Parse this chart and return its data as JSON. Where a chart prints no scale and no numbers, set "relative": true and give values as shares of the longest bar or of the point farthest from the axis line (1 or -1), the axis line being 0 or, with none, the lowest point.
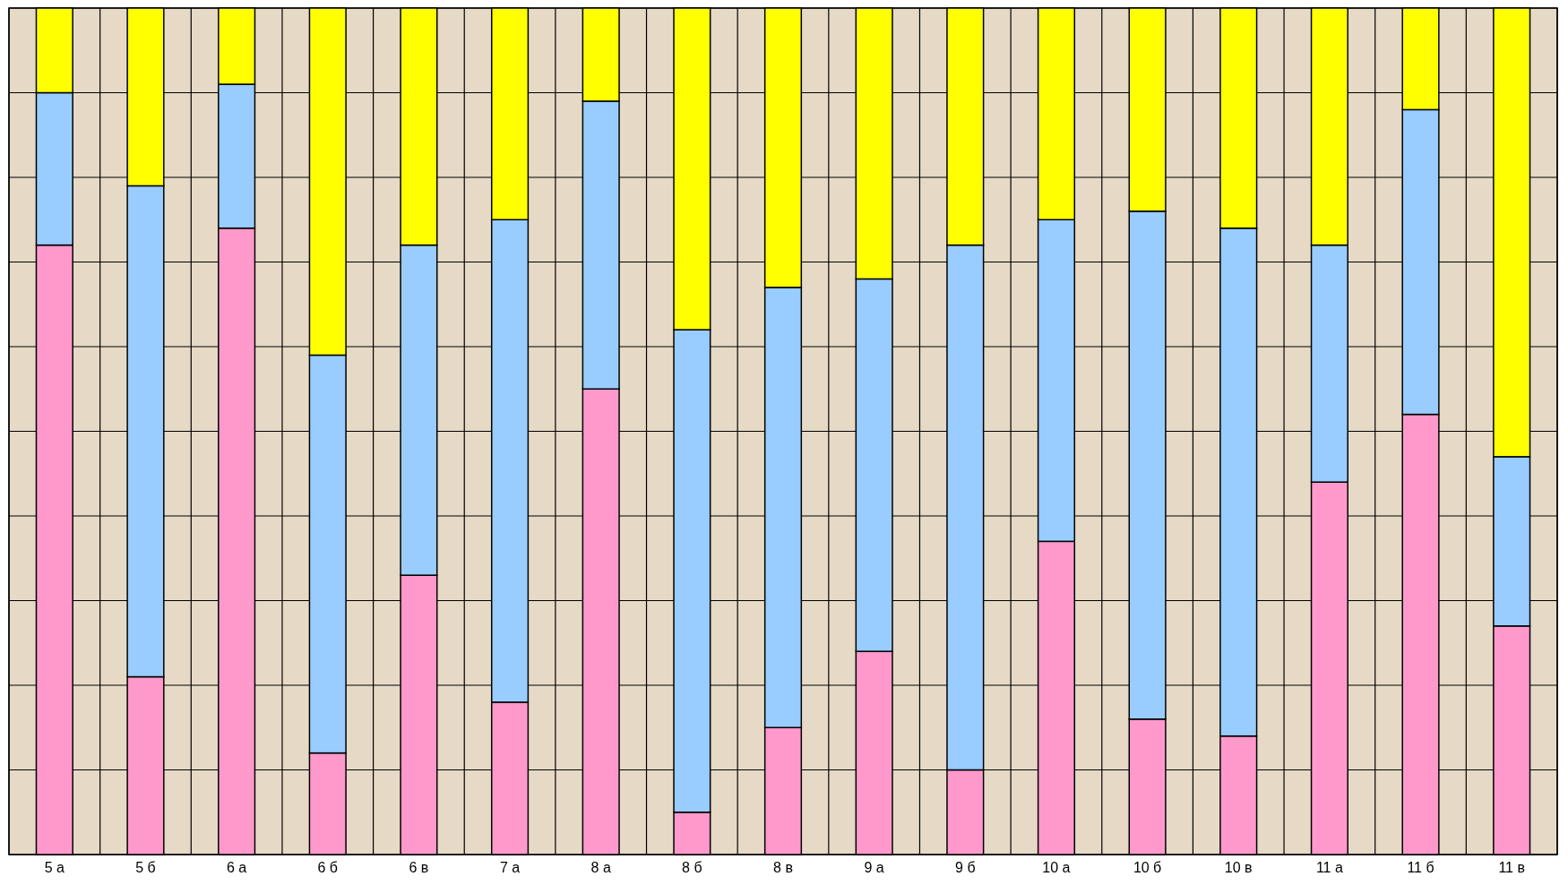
{
  "chart_data": {
    "type": "bar",
    "relative": true,
    "stacked": true,
    "grid": true,
    "categories": [
      "5 а",
      "5 б",
      "6 а",
      "6 б",
      "6 в",
      "7 а",
      "8 а",
      "8 б",
      "8 в",
      "9 а",
      "9 б",
      "10 а",
      "10 б",
      "10 в",
      "11 а",
      "11 б",
      "11 в"
    ],
    "series": [
      {
        "color": "#ff99cc",
        "values": [
          0.72,
          0.21,
          0.74,
          0.12,
          0.33,
          0.18,
          0.55,
          0.05,
          0.15,
          0.24,
          0.1,
          0.37,
          0.16,
          0.14,
          0.44,
          0.52,
          0.27
        ]
      },
      {
        "color": "#99ccff",
        "values": [
          0.18,
          0.58,
          0.17,
          0.47,
          0.39,
          0.57,
          0.34,
          0.57,
          0.52,
          0.44,
          0.62,
          0.38,
          0.6,
          0.6,
          0.28,
          0.36,
          0.2
        ]
      },
      {
        "color": "#ffff00",
        "values": [
          0.1,
          0.21,
          0.09,
          0.41,
          0.28,
          0.25,
          0.11,
          0.38,
          0.33,
          0.32,
          0.28,
          0.25,
          0.24,
          0.26,
          0.28,
          0.12,
          0.53
        ]
      }
    ]
  }
}
